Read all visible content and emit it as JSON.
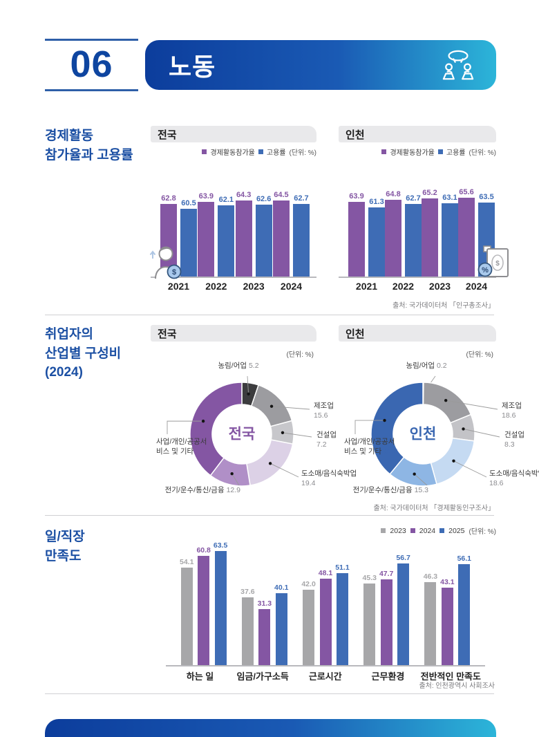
{
  "page": {
    "number": "06",
    "title": "노동"
  },
  "section1": {
    "title_lines": [
      "경제활동",
      "참가율과 고용률"
    ],
    "panels": [
      {
        "region": "전국"
      },
      {
        "region": "인천"
      }
    ],
    "legend": {
      "s1": "경제활동참가율",
      "s2": "고용률",
      "unit": "(단위: %)"
    },
    "source": "출처: 국가데이터처 「인구총조사」"
  },
  "section2": {
    "title_lines": [
      "취업자의",
      "산업별 구성비",
      "(2024)"
    ],
    "panels": [
      {
        "region": "전국"
      },
      {
        "region": "인천"
      }
    ],
    "unit": "(단위: %)",
    "source": "출처: 국가데이터처 「경제활동인구조사」"
  },
  "section3": {
    "title_lines": [
      "일/직장",
      "만족도"
    ],
    "unit": "(단위: %)",
    "source": "출처: 인천광역시 사회조사"
  },
  "colors": {
    "accent_blue": "#1b4fa3",
    "bar_purple": "#8456a3",
    "bar_blue": "#3e6cb5",
    "bar_gray": "#a7a7a9"
  },
  "chart_data": [
    {
      "id": "participation-national",
      "type": "bar",
      "title": "전국",
      "unit": "%",
      "categories": [
        "2021",
        "2022",
        "2023",
        "2024"
      ],
      "series": [
        {
          "name": "경제활동참가율",
          "color": "#8456a3",
          "values": [
            62.8,
            63.9,
            64.3,
            64.5
          ]
        },
        {
          "name": "고용률",
          "color": "#3e6cb5",
          "values": [
            60.5,
            62.1,
            62.6,
            62.7
          ]
        }
      ]
    },
    {
      "id": "participation-incheon",
      "type": "bar",
      "title": "인천",
      "unit": "%",
      "categories": [
        "2021",
        "2022",
        "2023",
        "2024"
      ],
      "series": [
        {
          "name": "경제활동참가율",
          "color": "#8456a3",
          "values": [
            63.9,
            64.8,
            65.2,
            65.6
          ]
        },
        {
          "name": "고용률",
          "color": "#3e6cb5",
          "values": [
            61.3,
            62.7,
            63.1,
            63.5
          ]
        }
      ]
    },
    {
      "id": "industry-national",
      "type": "pie",
      "title": "전국",
      "unit": "%",
      "center_label": "전국",
      "center_color": "#8456a3",
      "slices": [
        {
          "label": "농림/어업",
          "value": 5.2,
          "color": "#3c3c3e"
        },
        {
          "label": "제조업",
          "value": 15.6,
          "color": "#9c9ca0"
        },
        {
          "label": "건설업",
          "value": 7.2,
          "color": "#c7c7cb"
        },
        {
          "label": "도소매/음식숙박업",
          "value": 19.4,
          "color": "#dcd1e6"
        },
        {
          "label": "전기/운수/통신/금융",
          "value": 12.9,
          "color": "#b08fc7"
        },
        {
          "label": "사업/개인/공공서비스 및 기타",
          "value": 39.6,
          "color": "#8456a3"
        }
      ]
    },
    {
      "id": "industry-incheon",
      "type": "pie",
      "title": "인천",
      "unit": "%",
      "center_label": "인천",
      "center_color": "#3a67b1",
      "slices": [
        {
          "label": "농림/어업",
          "value": 0.2,
          "color": "#2f2f31"
        },
        {
          "label": "제조업",
          "value": 18.6,
          "color": "#9c9ca0"
        },
        {
          "label": "건설업",
          "value": 8.3,
          "color": "#c3c3c7"
        },
        {
          "label": "도소매/음식숙박업",
          "value": 18.6,
          "color": "#c5daf2"
        },
        {
          "label": "전기/운수/통신/금융",
          "value": 15.3,
          "color": "#8eb6e4"
        },
        {
          "label": "사업/개인/공공서비스 및 기타",
          "value": 39.0,
          "color": "#3a67b1"
        }
      ]
    },
    {
      "id": "satisfaction",
      "type": "bar",
      "title": "일/직장 만족도",
      "unit": "%",
      "categories": [
        "하는 일",
        "임금/가구소득",
        "근로시간",
        "근무환경",
        "전반적인 만족도"
      ],
      "series": [
        {
          "name": "2023",
          "color": "#a7a7a9",
          "values": [
            54.1,
            37.6,
            42.0,
            45.3,
            46.3
          ]
        },
        {
          "name": "2024",
          "color": "#8456a3",
          "values": [
            60.8,
            31.3,
            48.1,
            47.7,
            43.1
          ]
        },
        {
          "name": "2025",
          "color": "#3e6cb5",
          "values": [
            63.5,
            40.1,
            51.1,
            56.7,
            56.1
          ]
        }
      ]
    }
  ]
}
